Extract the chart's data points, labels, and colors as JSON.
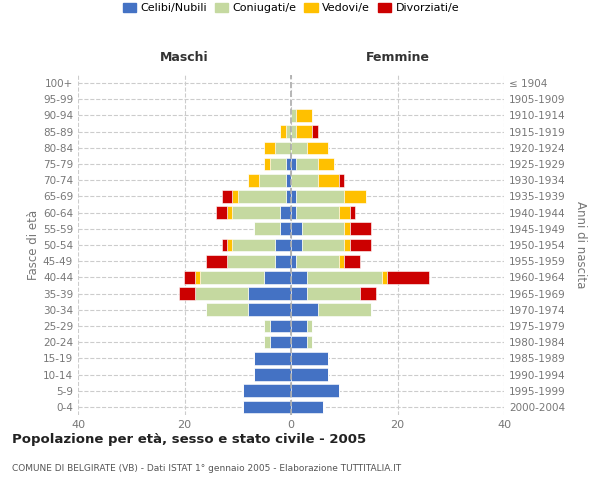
{
  "age_groups": [
    "0-4",
    "5-9",
    "10-14",
    "15-19",
    "20-24",
    "25-29",
    "30-34",
    "35-39",
    "40-44",
    "45-49",
    "50-54",
    "55-59",
    "60-64",
    "65-69",
    "70-74",
    "75-79",
    "80-84",
    "85-89",
    "90-94",
    "95-99",
    "100+"
  ],
  "birth_years": [
    "2000-2004",
    "1995-1999",
    "1990-1994",
    "1985-1989",
    "1980-1984",
    "1975-1979",
    "1970-1974",
    "1965-1969",
    "1960-1964",
    "1955-1959",
    "1950-1954",
    "1945-1949",
    "1940-1944",
    "1935-1939",
    "1930-1934",
    "1925-1929",
    "1920-1924",
    "1915-1919",
    "1910-1914",
    "1905-1909",
    "≤ 1904"
  ],
  "colors": {
    "celibi": "#4472C4",
    "coniugati": "#c5d9a0",
    "vedovi": "#ffc000",
    "divorziati": "#cc0000"
  },
  "males": {
    "celibi": [
      9,
      9,
      7,
      7,
      4,
      4,
      8,
      8,
      5,
      3,
      3,
      2,
      2,
      1,
      1,
      1,
      0,
      0,
      0,
      0,
      0
    ],
    "coniugati": [
      0,
      0,
      0,
      0,
      1,
      1,
      8,
      10,
      12,
      9,
      8,
      5,
      9,
      9,
      5,
      3,
      3,
      1,
      0,
      0,
      0
    ],
    "vedovi": [
      0,
      0,
      0,
      0,
      0,
      0,
      0,
      0,
      1,
      0,
      1,
      0,
      1,
      1,
      2,
      1,
      2,
      1,
      0,
      0,
      0
    ],
    "divorziati": [
      0,
      0,
      0,
      0,
      0,
      0,
      0,
      3,
      2,
      4,
      1,
      0,
      2,
      2,
      0,
      0,
      0,
      0,
      0,
      0,
      0
    ]
  },
  "females": {
    "celibi": [
      6,
      9,
      7,
      7,
      3,
      3,
      5,
      3,
      3,
      1,
      2,
      2,
      1,
      1,
      0,
      1,
      0,
      0,
      0,
      0,
      0
    ],
    "coniugati": [
      0,
      0,
      0,
      0,
      1,
      1,
      10,
      10,
      14,
      8,
      8,
      8,
      8,
      9,
      5,
      4,
      3,
      1,
      1,
      0,
      0
    ],
    "vedovi": [
      0,
      0,
      0,
      0,
      0,
      0,
      0,
      0,
      1,
      1,
      1,
      1,
      2,
      4,
      4,
      3,
      4,
      3,
      3,
      0,
      0
    ],
    "divorziati": [
      0,
      0,
      0,
      0,
      0,
      0,
      0,
      3,
      8,
      3,
      4,
      4,
      1,
      0,
      1,
      0,
      0,
      1,
      0,
      0,
      0
    ]
  },
  "xlim": 40,
  "title": "Popolazione per età, sesso e stato civile - 2005",
  "subtitle": "COMUNE DI BELGIRATE (VB) - Dati ISTAT 1° gennaio 2005 - Elaborazione TUTTITALIA.IT",
  "ylabel_left": "Fasce di età",
  "ylabel_right": "Anni di nascita",
  "header_left": "Maschi",
  "header_right": "Femmine",
  "legend_labels": [
    "Celibi/Nubili",
    "Coniugati/e",
    "Vedovi/e",
    "Divorziati/e"
  ],
  "background_color": "#ffffff",
  "grid_color": "#cccccc",
  "tick_color": "#777777"
}
